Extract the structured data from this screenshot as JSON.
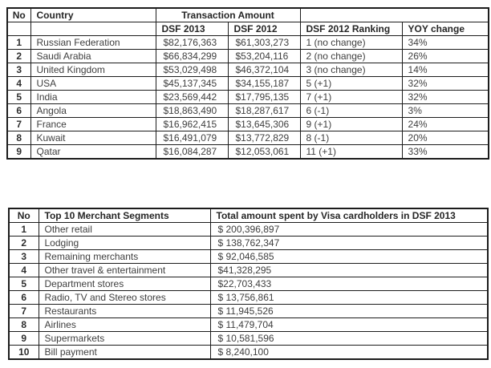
{
  "table1": {
    "header": {
      "no": "No",
      "country": "Country",
      "transaction_amount": "Transaction Amount",
      "dsf2013": "DSF 2013",
      "dsf2012": "DSF 2012",
      "ranking": "DSF 2012 Ranking",
      "yoy": "YOY change"
    },
    "rows": [
      {
        "no": "1",
        "country": "Russian Federation",
        "dsf2013": "$82,176,363",
        "dsf2012": "$61,303,273",
        "ranking": "1 (no change)",
        "yoy": "34%"
      },
      {
        "no": "2",
        "country": "Saudi Arabia",
        "dsf2013": "$66,834,299",
        "dsf2012": "$53,204,116",
        "ranking": "2 (no change)",
        "yoy": "26%"
      },
      {
        "no": "3",
        "country": "United Kingdom",
        "dsf2013": "$53,029,498",
        "dsf2012": "$46,372,104",
        "ranking": "3 (no change)",
        "yoy": "14%"
      },
      {
        "no": "4",
        "country": "USA",
        "dsf2013": "$45,137,345",
        "dsf2012": "$34,155,187",
        "ranking": "5 (+1)",
        "yoy": "32%"
      },
      {
        "no": "5",
        "country": "India",
        "dsf2013": "$23,569,442",
        "dsf2012": "$17,795,135",
        "ranking": "7 (+1)",
        "yoy": "32%"
      },
      {
        "no": "6",
        "country": "Angola",
        "dsf2013": "$18,863,490",
        "dsf2012": "$18,287,617",
        "ranking": "6 (-1)",
        "yoy": "3%"
      },
      {
        "no": "7",
        "country": "France",
        "dsf2013": "$16,962,415",
        "dsf2012": "$13,645,306",
        "ranking": "9 (+1)",
        "yoy": "24%"
      },
      {
        "no": "8",
        "country": "Kuwait",
        "dsf2013": "$16,491,079",
        "dsf2012": "$13,772,829",
        "ranking": "8 (-1)",
        "yoy": "20%"
      },
      {
        "no": "9",
        "country": "Qatar",
        "dsf2013": "$16,084,287",
        "dsf2012": "$12,053,061",
        "ranking": "11 (+1)",
        "yoy": "33%"
      }
    ]
  },
  "table2": {
    "header": {
      "no": "No",
      "segment": "Top 10 Merchant Segments",
      "total": "Total amount spent by Visa cardholders in DSF 2013"
    },
    "rows": [
      {
        "no": "1",
        "segment": "Other retail",
        "total": "$ 200,396,897"
      },
      {
        "no": "2",
        "segment": "Lodging",
        "total": "$ 138,762,347"
      },
      {
        "no": "3",
        "segment": "Remaining merchants",
        "total": "$ 92,046,585"
      },
      {
        "no": "4",
        "segment": "Other travel & entertainment",
        "total": "$41,328,295"
      },
      {
        "no": "5",
        "segment": "Department stores",
        "total": "$22,703,433"
      },
      {
        "no": "6",
        "segment": "Radio, TV and Stereo stores",
        "total": "$ 13,756,861"
      },
      {
        "no": "7",
        "segment": "Restaurants",
        "total": "$ 11,945,526"
      },
      {
        "no": "8",
        "segment": "Airlines",
        "total": "$ 11,479,704"
      },
      {
        "no": "9",
        "segment": "Supermarkets",
        "total": "$ 10,581,596"
      },
      {
        "no": "10",
        "segment": "Bill payment",
        "total": "$ 8,240,100"
      }
    ]
  }
}
